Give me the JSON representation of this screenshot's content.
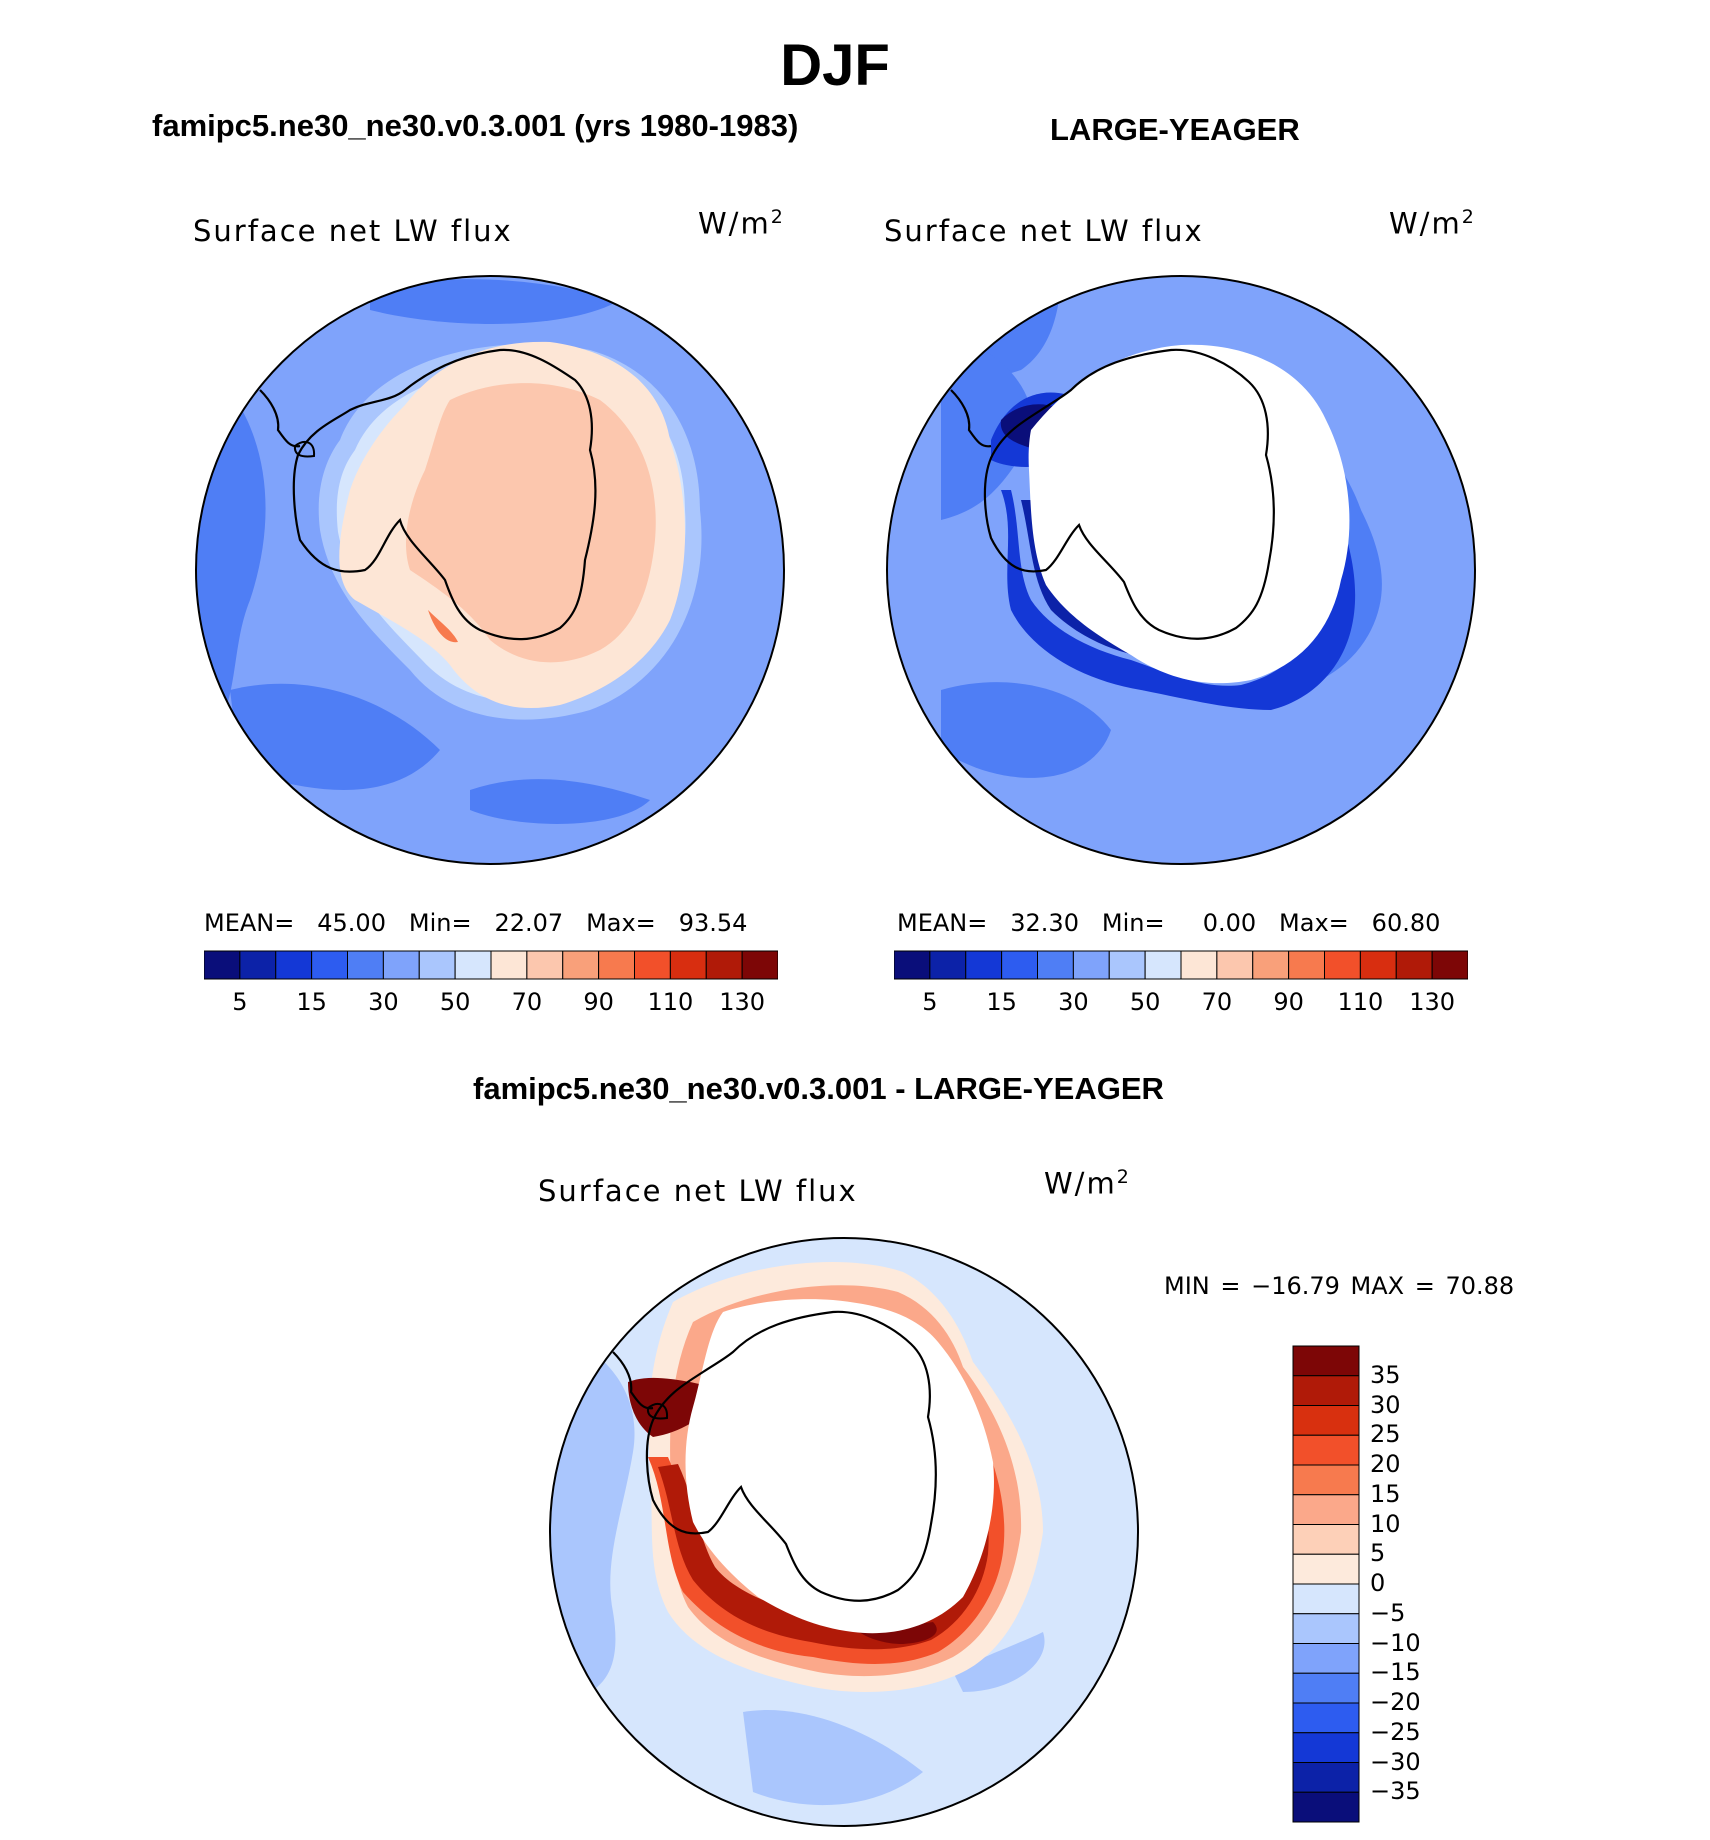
{
  "season": "DJF",
  "panels": [
    {
      "title": "famipc5.ne30_ne30.v0.3.001 (yrs 1980-1983)",
      "subtitle": "Surface net LW flux",
      "units_base": "W/m",
      "units_exp": "2",
      "stats": {
        "mean_label": "MEAN=",
        "mean": "45.00",
        "min_label": "Min=",
        "min": "22.07",
        "max_label": "Max=",
        "max": "93.54"
      }
    },
    {
      "title": "LARGE-YEAGER",
      "subtitle": "Surface net LW flux",
      "units_base": "W/m",
      "units_exp": "2",
      "stats": {
        "mean_label": "MEAN=",
        "mean": "32.30",
        "min_label": "Min=",
        "min": "0.00",
        "max_label": "Max=",
        "max": "60.80"
      }
    },
    {
      "title": "famipc5.ne30_ne30.v0.3.001 - LARGE-YEAGER",
      "subtitle": "Surface net LW flux",
      "units_base": "W/m",
      "units_exp": "2",
      "stats": {
        "text": "MIN = −16.79 MAX =   70.88"
      }
    }
  ],
  "chart_data": [
    {
      "type": "heatmap",
      "projection": "south-polar-stereographic",
      "title": "famipc5.ne30_ne30.v0.3.001 (yrs 1980-1983)",
      "variable": "Surface net LW flux",
      "units": "W/m2",
      "mean": 45.0,
      "min": 22.07,
      "max": 93.54,
      "colorbar_ticks": [
        "5",
        "15",
        "30",
        "50",
        "70",
        "90",
        "110",
        "130"
      ],
      "colorbar_colors": [
        "#0a0e7a",
        "#0c22a8",
        "#1438d6",
        "#2d5cf0",
        "#4f7ef5",
        "#7fa3fb",
        "#aac6fd",
        "#d6e6fd",
        "#fde6d6",
        "#fcc7ae",
        "#f9a07a",
        "#f77a4e",
        "#f2502a",
        "#d82e10",
        "#b01a08",
        "#7d0606"
      ]
    },
    {
      "type": "heatmap",
      "projection": "south-polar-stereographic",
      "title": "LARGE-YEAGER",
      "variable": "Surface net LW flux",
      "units": "W/m2",
      "mean": 32.3,
      "min": 0.0,
      "max": 60.8,
      "colorbar_ticks": [
        "5",
        "15",
        "30",
        "50",
        "70",
        "90",
        "110",
        "130"
      ],
      "colorbar_colors": [
        "#0a0e7a",
        "#0c22a8",
        "#1438d6",
        "#2d5cf0",
        "#4f7ef5",
        "#7fa3fb",
        "#aac6fd",
        "#d6e6fd",
        "#fde6d6",
        "#fcc7ae",
        "#f9a07a",
        "#f77a4e",
        "#f2502a",
        "#d82e10",
        "#b01a08",
        "#7d0606"
      ]
    },
    {
      "type": "heatmap",
      "projection": "south-polar-stereographic",
      "title": "famipc5.ne30_ne30.v0.3.001 - LARGE-YEAGER",
      "variable": "Surface net LW flux",
      "units": "W/m2",
      "min": -16.79,
      "max": 70.88,
      "colorbar_ticks": [
        "35",
        "30",
        "25",
        "20",
        "15",
        "10",
        "5",
        "0",
        "−5",
        "−10",
        "−15",
        "−20",
        "−25",
        "−30",
        "−35"
      ],
      "colorbar_colors": [
        "#7d0606",
        "#b01a08",
        "#d8300f",
        "#f2502a",
        "#f77a4e",
        "#fba88a",
        "#fdd0b8",
        "#fdeadc",
        "#d6e6fd",
        "#aac6fd",
        "#7fa3fb",
        "#4f7ef5",
        "#2d5cf0",
        "#1438d6",
        "#0c22a8",
        "#0a0e7a"
      ]
    }
  ]
}
